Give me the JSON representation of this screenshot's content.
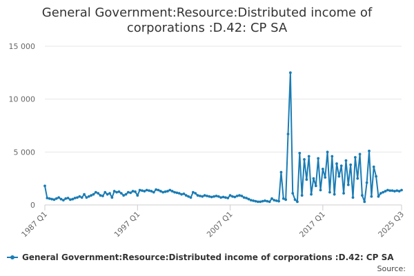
{
  "chart_data": {
    "type": "line",
    "title": "General Government:Resource:Distributed income of corporations :D.42: CP SA",
    "title_lines": [
      "General Government:Resource:Distributed income of",
      "corporations :D.42: CP SA"
    ],
    "ylim": [
      0,
      15000
    ],
    "yticks": [
      0,
      5000,
      10000,
      15000
    ],
    "ytick_labels": [
      "0",
      "5 000",
      "10 000",
      "15 000"
    ],
    "x_tick_labels": [
      "1987 Q1",
      "1997 Q1",
      "2007 Q1",
      "2017 Q1",
      "2025 Q3"
    ],
    "x_tick_indices": [
      0,
      40,
      80,
      120,
      154
    ],
    "grid": true,
    "legend_position": "bottom-left",
    "color": "#1a7cb4",
    "series": [
      {
        "name": "General Government:Resource:Distributed income of corporations :D.42: CP SA",
        "values": [
          1800,
          650,
          600,
          550,
          500,
          600,
          700,
          550,
          450,
          600,
          650,
          500,
          550,
          650,
          700,
          800,
          700,
          1000,
          700,
          800,
          900,
          1000,
          1200,
          1100,
          900,
          850,
          1200,
          1000,
          1100,
          700,
          1300,
          1200,
          1250,
          1100,
          900,
          1000,
          1200,
          1150,
          1300,
          1250,
          900,
          1400,
          1350,
          1300,
          1400,
          1350,
          1300,
          1200,
          1450,
          1400,
          1300,
          1200,
          1250,
          1300,
          1400,
          1300,
          1200,
          1150,
          1100,
          1000,
          1050,
          900,
          800,
          700,
          1200,
          1100,
          900,
          850,
          800,
          900,
          850,
          800,
          750,
          800,
          850,
          800,
          700,
          750,
          700,
          650,
          900,
          800,
          750,
          850,
          900,
          850,
          700,
          650,
          550,
          450,
          400,
          350,
          300,
          300,
          350,
          400,
          350,
          300,
          600,
          450,
          400,
          350,
          3100,
          600,
          500,
          6700,
          12500,
          1100,
          500,
          300,
          4900,
          900,
          4300,
          2400,
          4600,
          1000,
          2500,
          1800,
          4400,
          1400,
          3400,
          2600,
          5000,
          1200,
          4600,
          1000,
          3900,
          2700,
          3700,
          1100,
          4200,
          1900,
          3800,
          700,
          4500,
          2500,
          4800,
          900,
          300,
          2100,
          5100,
          800,
          3600,
          2700,
          800,
          1100,
          1200,
          1300,
          1400,
          1350,
          1350,
          1300,
          1350,
          1300,
          1400
        ]
      }
    ]
  },
  "legend_label": "General Government:Resource:Distributed income of corporations :D.42: CP SA",
  "source_label": "Source:"
}
